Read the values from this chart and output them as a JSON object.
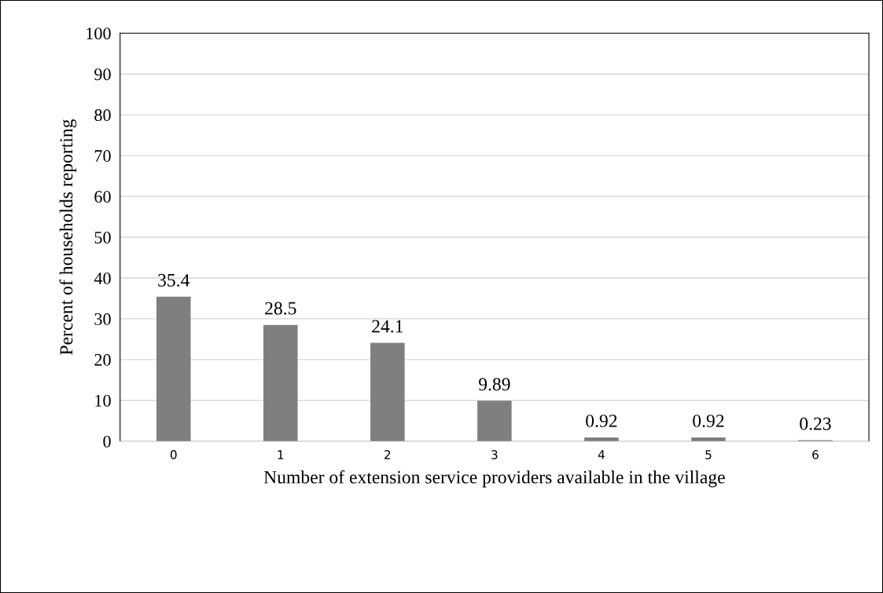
{
  "chart_data": {
    "type": "bar",
    "xlabel": "Number of extension service providers available in the village",
    "ylabel": "Percent of households reporting",
    "categories": [
      "0",
      "1",
      "2",
      "3",
      "4",
      "5",
      "6"
    ],
    "values": [
      35.4,
      28.5,
      24.1,
      9.89,
      0.92,
      0.92,
      0.23
    ],
    "color": "#7f7f7f",
    "data_labels": true,
    "ylim": [
      0,
      100
    ],
    "yticks": [
      0,
      10,
      20,
      30,
      40,
      50,
      60,
      70,
      80,
      90,
      100
    ],
    "grid": "y",
    "legend": false
  }
}
